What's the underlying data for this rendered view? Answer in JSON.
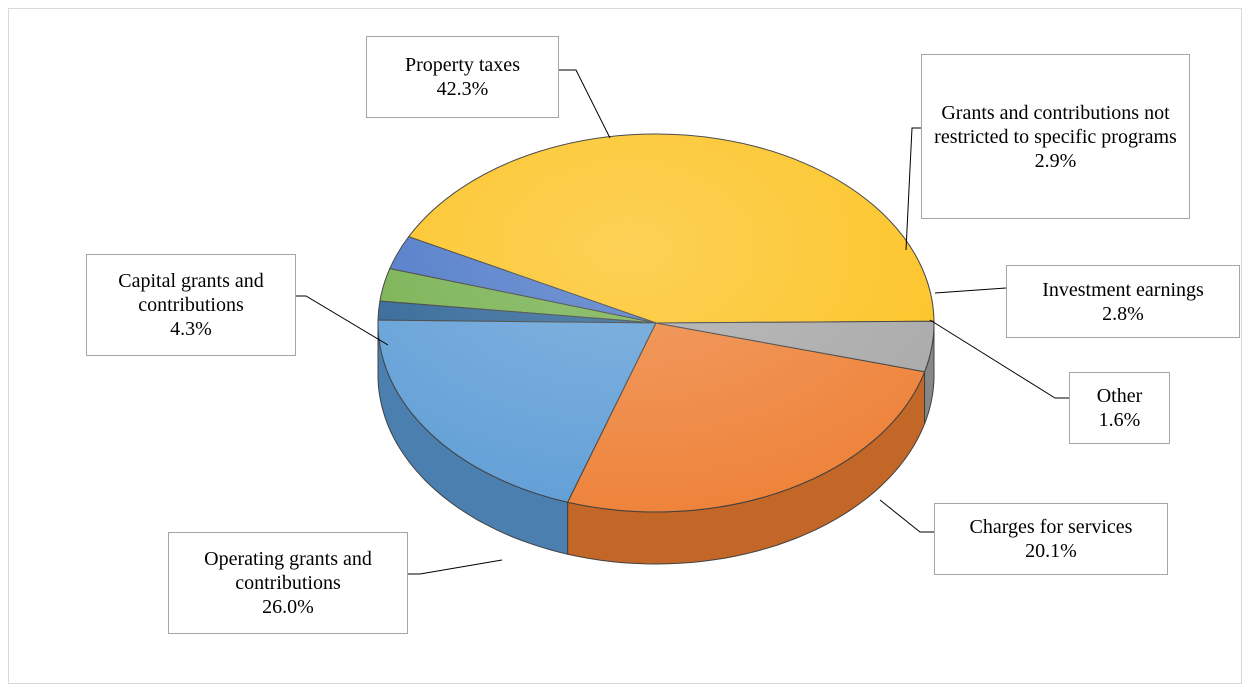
{
  "chart_data": {
    "type": "pie",
    "title": "",
    "slices": [
      {
        "label": "Property taxes",
        "value": 42.3,
        "display": "42.3%",
        "color": "#FCC11A"
      },
      {
        "label": "Grants and contributions not restricted to specific programs",
        "value": 2.9,
        "display": "2.9%",
        "color": "#4472C4"
      },
      {
        "label": "Investment earnings",
        "value": 2.8,
        "display": "2.8%",
        "color": "#70AD47"
      },
      {
        "label": "Other",
        "value": 1.6,
        "display": "1.6%",
        "color": "#255E91"
      },
      {
        "label": "Charges for services",
        "value": 20.1,
        "display": "20.1%",
        "color": "#5B9BD5"
      },
      {
        "label": "Operating grants and contributions",
        "value": 26.0,
        "display": "26.0%",
        "color": "#ED7D31"
      },
      {
        "label": "Capital grants and contributions",
        "value": 4.3,
        "display": "4.3%",
        "color": "#A5A5A5"
      }
    ]
  }
}
